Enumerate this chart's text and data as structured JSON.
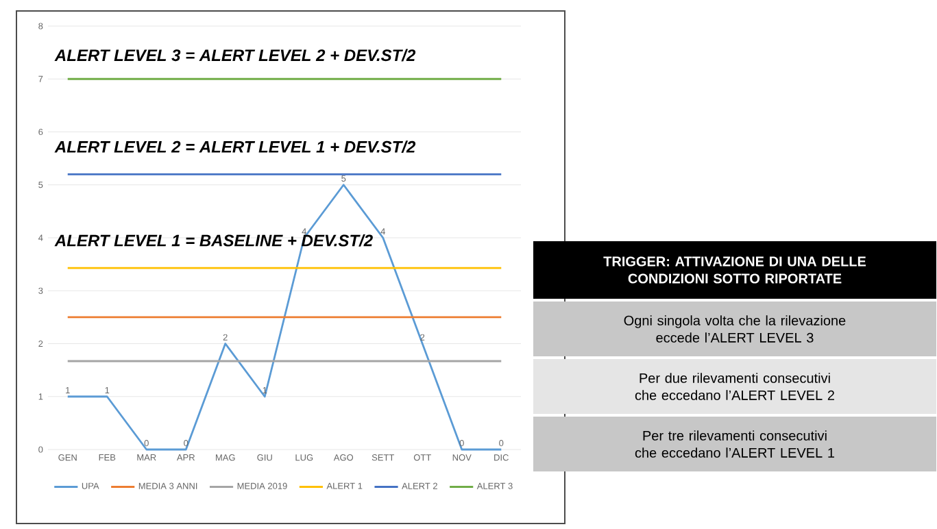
{
  "chart_data": {
    "type": "line",
    "categories": [
      "GEN",
      "FEB",
      "MAR",
      "APR",
      "MAG",
      "GIU",
      "LUG",
      "AGO",
      "SETT",
      "OTT",
      "NOV",
      "DIC"
    ],
    "series": [
      {
        "name": "UPA",
        "color": "#5b9bd5",
        "values": [
          1,
          1,
          0,
          0,
          2,
          1,
          4,
          5,
          4,
          2,
          0,
          0
        ],
        "value_labels": [
          "1",
          "1",
          "0",
          "0",
          "2",
          "1",
          "4",
          "5",
          "4",
          "2",
          "0",
          "0"
        ]
      },
      {
        "name": "MEDIA 3 ANNI",
        "color": "#ed7d31",
        "values": [
          2.5,
          2.5,
          2.5,
          2.5,
          2.5,
          2.5,
          2.5,
          2.5,
          2.5,
          2.5,
          2.5,
          2.5
        ]
      },
      {
        "name": "MEDIA 2019",
        "color": "#a5a5a5",
        "values": [
          1.67,
          1.67,
          1.67,
          1.67,
          1.67,
          1.67,
          1.67,
          1.67,
          1.67,
          1.67,
          1.67,
          1.67
        ]
      },
      {
        "name": "ALERT 1",
        "color": "#ffc000",
        "values": [
          3.43,
          3.43,
          3.43,
          3.43,
          3.43,
          3.43,
          3.43,
          3.43,
          3.43,
          3.43,
          3.43,
          3.43
        ]
      },
      {
        "name": "ALERT 2",
        "color": "#4472c4",
        "values": [
          5.2,
          5.2,
          5.2,
          5.2,
          5.2,
          5.2,
          5.2,
          5.2,
          5.2,
          5.2,
          5.2,
          5.2
        ]
      },
      {
        "name": "ALERT 3",
        "color": "#70ad47",
        "values": [
          7,
          7,
          7,
          7,
          7,
          7,
          7,
          7,
          7,
          7,
          7,
          7
        ]
      }
    ],
    "ylim": [
      0,
      8
    ],
    "yticks": [
      0,
      1,
      2,
      3,
      4,
      5,
      6,
      7,
      8
    ],
    "grid": "y",
    "legend": "bottom",
    "marker": "none",
    "line_style": "solid",
    "annotations": [
      "ALERT LEVEL 3 = ALERT LEVEL 2 + DEV.ST/2",
      "ALERT LEVEL 2 = ALERT LEVEL 1 + DEV.ST/2",
      "ALERT LEVEL 1 = BASELINE + DEV.ST/2",
      "TRIGGER: ATTIVAZIONE DI UNA DELLE CONDIZIONI SOTTO RIPORTATE",
      "Ogni singola volta che la rilevazione eccede l’ALERT LEVEL 3",
      "Per due rilevamenti consecutivi che eccedano l’ALERT LEVEL 2",
      "Per tre rilevamenti consecutivi che eccedano l’ALERT LEVEL 1"
    ]
  }
}
